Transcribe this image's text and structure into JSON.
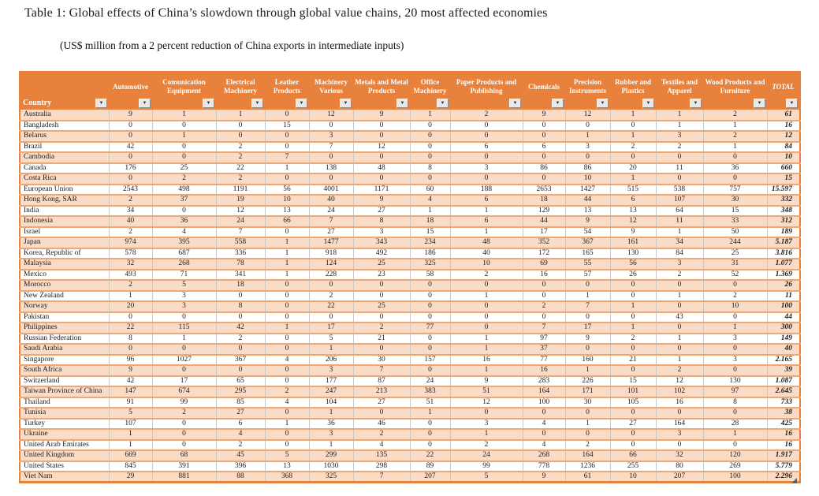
{
  "title": "Table 1: Global effects of China’s slowdown through global value chains, 20 most affected economies",
  "subtitle": "(US$ million from a 2 percent reduction of China exports in intermediate inputs)",
  "colors": {
    "header_bg": "#E8813B",
    "row_peach": "#FADCC6",
    "row_white": "#FFFFFF",
    "row_divider": "#ECA876",
    "grid_gray": "#C9C9C9",
    "header_text": "#FFFFFF"
  },
  "icons": {
    "filter_dropdown": "▼"
  },
  "table": {
    "columns": [
      {
        "label": "Country"
      },
      {
        "label": "Automotive"
      },
      {
        "label": "Comunication Equipment"
      },
      {
        "label": "Electrical Machinery"
      },
      {
        "label": "Leather Products"
      },
      {
        "label": "Machinery Various"
      },
      {
        "label": "Metals and Metal Products"
      },
      {
        "label": "Office Machinery"
      },
      {
        "label": "Paper Products and Publishing"
      },
      {
        "label": "Chemicals"
      },
      {
        "label": "Precision Instruments"
      },
      {
        "label": "Rubber and Plastics"
      },
      {
        "label": "Textiles and Apparel"
      },
      {
        "label": "Wood Products and Furniture"
      },
      {
        "label": "TOTAL"
      }
    ],
    "rows": [
      {
        "country": "Australia",
        "values": [
          9,
          1,
          1,
          0,
          12,
          9,
          1,
          2,
          9,
          12,
          1,
          1,
          2
        ],
        "total": "61"
      },
      {
        "country": "Bangladesh",
        "values": [
          0,
          0,
          0,
          15,
          0,
          0,
          0,
          0,
          0,
          0,
          0,
          1,
          1
        ],
        "total": "16"
      },
      {
        "country": "Belarus",
        "values": [
          0,
          1,
          0,
          0,
          3,
          0,
          0,
          0,
          0,
          1,
          1,
          3,
          2
        ],
        "total": "12"
      },
      {
        "country": "Brazil",
        "values": [
          42,
          0,
          2,
          0,
          7,
          12,
          0,
          6,
          6,
          3,
          2,
          2,
          1
        ],
        "total": "84"
      },
      {
        "country": "Cambodia",
        "values": [
          0,
          0,
          2,
          7,
          0,
          0,
          0,
          0,
          0,
          0,
          0,
          0,
          0
        ],
        "total": "10"
      },
      {
        "country": "Canada",
        "values": [
          176,
          25,
          22,
          1,
          138,
          48,
          8,
          3,
          86,
          86,
          20,
          11,
          36
        ],
        "total": "660"
      },
      {
        "country": "Costa Rica",
        "values": [
          0,
          2,
          2,
          0,
          0,
          0,
          0,
          0,
          0,
          10,
          1,
          0,
          0
        ],
        "total": "15"
      },
      {
        "country": "European Union",
        "values": [
          2543,
          498,
          1191,
          56,
          4001,
          1171,
          60,
          188,
          2653,
          1427,
          515,
          538,
          757
        ],
        "total": "15.597"
      },
      {
        "country": "Hong Kong, SAR",
        "values": [
          2,
          37,
          19,
          10,
          40,
          9,
          4,
          6,
          18,
          44,
          6,
          107,
          30
        ],
        "total": "332"
      },
      {
        "country": "India",
        "values": [
          34,
          0,
          12,
          13,
          24,
          27,
          1,
          1,
          129,
          13,
          13,
          64,
          15
        ],
        "total": "348"
      },
      {
        "country": "Indonesia",
        "values": [
          40,
          36,
          24,
          66,
          7,
          8,
          18,
          6,
          44,
          9,
          12,
          11,
          33
        ],
        "total": "312"
      },
      {
        "country": "Israel",
        "values": [
          2,
          4,
          7,
          0,
          27,
          3,
          15,
          1,
          17,
          54,
          9,
          1,
          50
        ],
        "total": "189"
      },
      {
        "country": "Japan",
        "values": [
          974,
          395,
          558,
          1,
          1477,
          343,
          234,
          48,
          352,
          367,
          161,
          34,
          244
        ],
        "total": "5.187"
      },
      {
        "country": "Korea, Republic of",
        "values": [
          578,
          687,
          336,
          1,
          918,
          492,
          186,
          40,
          172,
          165,
          130,
          84,
          25
        ],
        "total": "3.816"
      },
      {
        "country": "Malaysia",
        "values": [
          32,
          268,
          78,
          1,
          124,
          25,
          325,
          10,
          69,
          55,
          56,
          3,
          31
        ],
        "total": "1.077"
      },
      {
        "country": "Mexico",
        "values": [
          493,
          71,
          341,
          1,
          228,
          23,
          58,
          2,
          16,
          57,
          26,
          2,
          52
        ],
        "total": "1.369"
      },
      {
        "country": "Morocco",
        "values": [
          2,
          5,
          18,
          0,
          0,
          0,
          0,
          0,
          0,
          0,
          0,
          0,
          0
        ],
        "total": "26"
      },
      {
        "country": "New Zealand",
        "values": [
          1,
          3,
          0,
          0,
          2,
          0,
          0,
          1,
          0,
          1,
          0,
          1,
          2
        ],
        "total": "11"
      },
      {
        "country": "Norway",
        "values": [
          20,
          3,
          8,
          0,
          22,
          25,
          0,
          0,
          2,
          7,
          1,
          0,
          10
        ],
        "total": "100"
      },
      {
        "country": "Pakistan",
        "values": [
          0,
          0,
          0,
          0,
          0,
          0,
          0,
          0,
          0,
          0,
          0,
          43,
          0
        ],
        "total": "44"
      },
      {
        "country": "Philippines",
        "values": [
          22,
          115,
          42,
          1,
          17,
          2,
          77,
          0,
          7,
          17,
          1,
          0,
          1
        ],
        "total": "300"
      },
      {
        "country": "Russian Federation",
        "values": [
          8,
          1,
          2,
          0,
          5,
          21,
          0,
          1,
          97,
          9,
          2,
          1,
          3
        ],
        "total": "149"
      },
      {
        "country": "Saudi Arabia",
        "values": [
          0,
          0,
          0,
          0,
          1,
          0,
          0,
          1,
          37,
          0,
          0,
          0,
          0
        ],
        "total": "40"
      },
      {
        "country": "Singapore",
        "values": [
          96,
          1027,
          367,
          4,
          206,
          30,
          157,
          16,
          77,
          160,
          21,
          1,
          3
        ],
        "total": "2.165"
      },
      {
        "country": "South Africa",
        "values": [
          9,
          0,
          0,
          0,
          3,
          7,
          0,
          1,
          16,
          1,
          0,
          2,
          0
        ],
        "total": "39"
      },
      {
        "country": "Switzerland",
        "values": [
          42,
          17,
          65,
          0,
          177,
          87,
          24,
          9,
          283,
          226,
          15,
          12,
          130
        ],
        "total": "1.087"
      },
      {
        "country": "Taiwan Province of China",
        "values": [
          147,
          674,
          295,
          2,
          247,
          213,
          383,
          51,
          164,
          171,
          101,
          102,
          97
        ],
        "total": "2.645"
      },
      {
        "country": "Thailand",
        "values": [
          91,
          99,
          85,
          4,
          104,
          27,
          51,
          12,
          100,
          30,
          105,
          16,
          8
        ],
        "total": "733"
      },
      {
        "country": "Tunisia",
        "values": [
          5,
          2,
          27,
          0,
          1,
          0,
          1,
          0,
          0,
          0,
          0,
          0,
          0
        ],
        "total": "38"
      },
      {
        "country": "Turkey",
        "values": [
          107,
          0,
          6,
          1,
          36,
          46,
          0,
          3,
          4,
          1,
          27,
          164,
          28
        ],
        "total": "425"
      },
      {
        "country": "Ukraine",
        "values": [
          1,
          0,
          4,
          0,
          3,
          2,
          0,
          1,
          0,
          0,
          0,
          3,
          1
        ],
        "total": "16"
      },
      {
        "country": "United Arab Emirates",
        "values": [
          1,
          0,
          2,
          0,
          1,
          4,
          0,
          2,
          4,
          2,
          0,
          0,
          0
        ],
        "total": "16"
      },
      {
        "country": "United Kingdom",
        "values": [
          669,
          68,
          45,
          5,
          299,
          135,
          22,
          24,
          268,
          164,
          66,
          32,
          120
        ],
        "total": "1.917"
      },
      {
        "country": "United States",
        "values": [
          845,
          391,
          396,
          13,
          1030,
          298,
          89,
          99,
          778,
          1236,
          255,
          80,
          269
        ],
        "total": "5.779"
      },
      {
        "country": "Viet Nam",
        "values": [
          29,
          881,
          88,
          368,
          325,
          7,
          207,
          5,
          9,
          61,
          10,
          207,
          100
        ],
        "total": "2.296"
      }
    ]
  }
}
